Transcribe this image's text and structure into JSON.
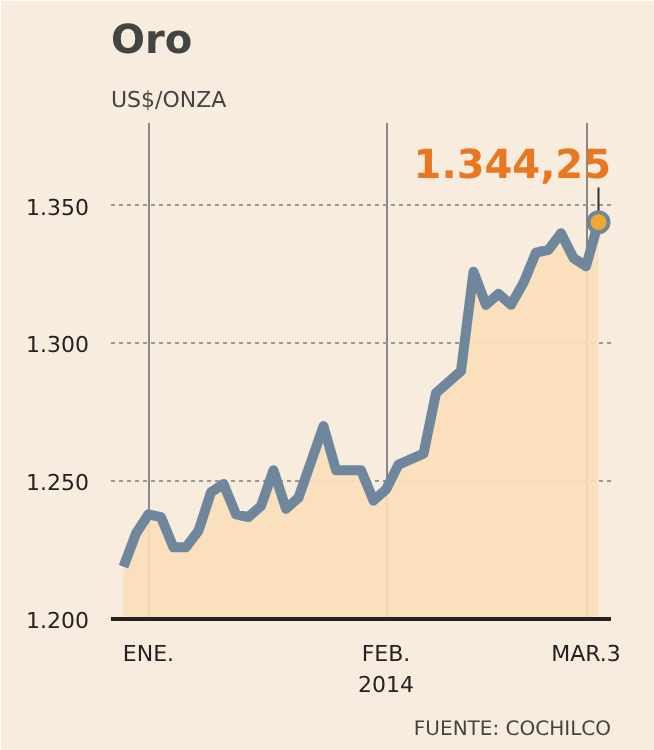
{
  "chart_data": {
    "type": "line",
    "title": "Oro",
    "subtitle": "US$/ONZA",
    "categories": [
      null,
      null,
      "ENE.",
      null,
      null,
      null,
      null,
      null,
      null,
      null,
      null,
      null,
      null,
      null,
      null,
      null,
      null,
      null,
      null,
      null,
      null,
      "FEB.\n2014",
      null,
      null,
      null,
      null,
      null,
      null,
      null,
      null,
      null,
      null,
      null,
      null,
      null,
      null,
      null,
      "MAR.3",
      null
    ],
    "series": [
      {
        "type": "area",
        "color": "#fbdfba",
        "values": [
          1219,
          1231,
          1238,
          1237,
          1226,
          1226,
          1232,
          1246,
          1249,
          1238,
          1237,
          1241,
          1254,
          1240,
          1244,
          1257,
          1270,
          1254,
          1254,
          1254,
          1243,
          1247,
          1256,
          1258,
          1260,
          1282,
          1286,
          1290,
          1326,
          1314,
          1318,
          1314,
          1322,
          1333,
          1334,
          1340,
          1331,
          1328,
          1344
        ]
      },
      {
        "color": "#6f879c",
        "values": [
          1219,
          1231,
          1238,
          1237,
          1226,
          1226,
          1232,
          1246,
          1249,
          1238,
          1237,
          1241,
          1254,
          1240,
          1244,
          1257,
          1270,
          1254,
          1254,
          1254,
          1243,
          1247,
          1256,
          1258,
          1260,
          1282,
          1286,
          1290,
          1326,
          1314,
          1318,
          1314,
          1322,
          1333,
          1334,
          1340,
          1331,
          1328,
          1344
        ]
      }
    ],
    "ylim": [
      1200,
      1380
    ],
    "yticks": [
      {
        "value": 1200,
        "label": "1.200"
      },
      {
        "value": 1250,
        "label": "1.250"
      },
      {
        "value": 1300,
        "label": "1.300"
      },
      {
        "value": 1350,
        "label": "1.350"
      }
    ],
    "grid": true,
    "annotations": [
      "1.344,25",
      "FUENTE: COCHILCO"
    ]
  }
}
